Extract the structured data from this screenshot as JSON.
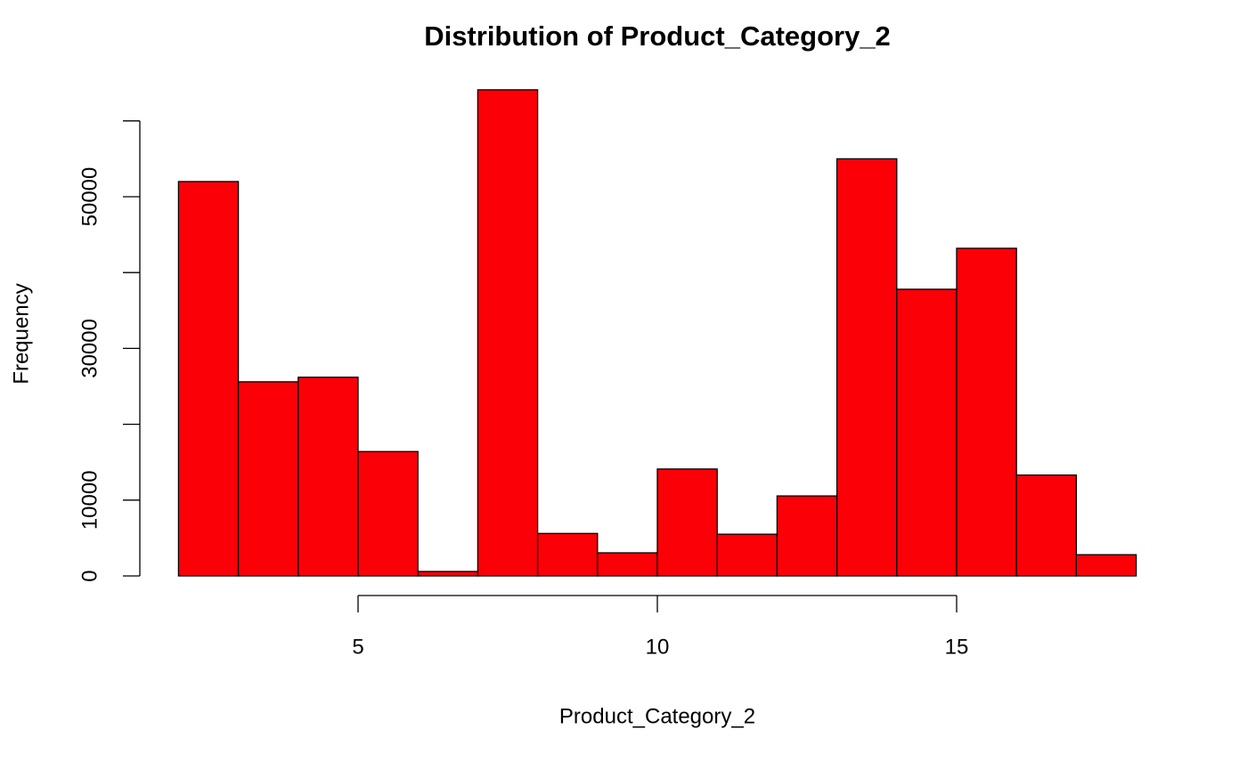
{
  "chart_data": {
    "type": "histogram",
    "title": "Distribution of Product_Category_2",
    "x_label": "Product_Category_2",
    "y_label": "Frequency",
    "bins": [
      2,
      3,
      4,
      5,
      6,
      7,
      8,
      9,
      10,
      11,
      12,
      13,
      14,
      15,
      16,
      17,
      18
    ],
    "counts": [
      52000,
      25600,
      26200,
      16400,
      590,
      64100,
      5600,
      3050,
      14100,
      5500,
      10550,
      55000,
      37800,
      43200,
      13300,
      2800
    ],
    "color": "#fb0007",
    "xlim": [
      2,
      18
    ],
    "xticks": [
      5,
      10,
      15
    ],
    "ylim": [
      0,
      65000
    ],
    "yticks": [
      0,
      10000,
      {
        "value": 20000,
        "label": null
      },
      30000,
      {
        "value": 40000,
        "label": null
      },
      50000,
      {
        "value": 60000,
        "label": null
      }
    ]
  }
}
